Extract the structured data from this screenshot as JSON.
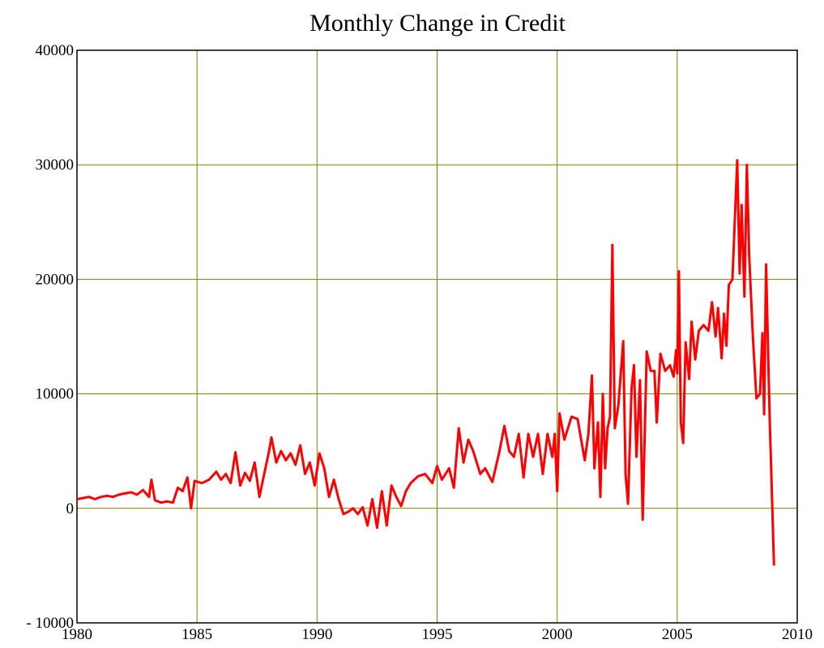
{
  "chart_data": {
    "type": "line",
    "title": "Monthly Change in Credit",
    "x": [
      1980.0,
      1980.25,
      1980.5,
      1980.75,
      1981.0,
      1981.25,
      1981.5,
      1981.75,
      1982.0,
      1982.25,
      1982.5,
      1982.75,
      1983.0,
      1983.1,
      1983.25,
      1983.5,
      1983.75,
      1984.0,
      1984.2,
      1984.4,
      1984.6,
      1984.75,
      1984.9,
      1985.2,
      1985.5,
      1985.8,
      1986.0,
      1986.2,
      1986.4,
      1986.6,
      1986.8,
      1987.0,
      1987.2,
      1987.4,
      1987.6,
      1987.8,
      1988.0,
      1988.1,
      1988.3,
      1988.5,
      1988.7,
      1988.9,
      1989.1,
      1989.3,
      1989.5,
      1989.7,
      1989.9,
      1990.1,
      1990.3,
      1990.5,
      1990.7,
      1990.9,
      1991.1,
      1991.3,
      1991.5,
      1991.7,
      1991.9,
      1992.1,
      1992.3,
      1992.5,
      1992.7,
      1992.9,
      1993.1,
      1993.3,
      1993.5,
      1993.7,
      1993.9,
      1994.2,
      1994.5,
      1994.8,
      1995.0,
      1995.2,
      1995.5,
      1995.7,
      1995.9,
      1996.1,
      1996.3,
      1996.5,
      1996.8,
      1997.0,
      1997.3,
      1997.6,
      1997.8,
      1998.0,
      1998.2,
      1998.4,
      1998.6,
      1998.8,
      1999.0,
      1999.2,
      1999.4,
      1999.6,
      1999.8,
      1999.9,
      2000.0,
      2000.1,
      2000.3,
      2000.6,
      2000.85,
      2001.15,
      2001.3,
      2001.45,
      2001.55,
      2001.7,
      2001.8,
      2001.9,
      2002.0,
      2002.1,
      2002.2,
      2002.3,
      2002.4,
      2002.55,
      2002.75,
      2002.85,
      2002.95,
      2003.1,
      2003.2,
      2003.3,
      2003.45,
      2003.56,
      2003.73,
      2003.9,
      2004.05,
      2004.15,
      2004.3,
      2004.5,
      2004.7,
      2004.85,
      2004.95,
      2005.0,
      2005.07,
      2005.15,
      2005.25,
      2005.35,
      2005.5,
      2005.6,
      2005.75,
      2005.9,
      2006.1,
      2006.3,
      2006.45,
      2006.6,
      2006.7,
      2006.85,
      2006.95,
      2007.05,
      2007.15,
      2007.3,
      2007.5,
      2007.6,
      2007.68,
      2007.8,
      2007.9,
      2008.0,
      2008.15,
      2008.3,
      2008.45,
      2008.55,
      2008.62,
      2008.7,
      2008.85,
      2009.03
    ],
    "series": [
      {
        "color": "#ff0000",
        "values": [
          800,
          900,
          1000,
          800,
          1000,
          1100,
          1000,
          1200,
          1300,
          1400,
          1200,
          1600,
          1000,
          2500,
          700,
          500,
          600,
          500,
          1800,
          1500,
          2700,
          0,
          2400,
          2200,
          2500,
          3200,
          2500,
          3000,
          2200,
          4900,
          2000,
          3100,
          2400,
          4000,
          1000,
          3000,
          5000,
          6200,
          4000,
          5000,
          4200,
          4800,
          3800,
          5500,
          3000,
          4000,
          2000,
          4800,
          3500,
          1000,
          2500,
          800,
          -500,
          -300,
          0,
          -500,
          100,
          -1500,
          800,
          -1700,
          1500,
          -1500,
          2000,
          1000,
          200,
          1500,
          2200,
          2800,
          3000,
          2200,
          3700,
          2500,
          3500,
          1800,
          7000,
          4000,
          6000,
          5000,
          3000,
          3500,
          2300,
          5000,
          7200,
          5000,
          4500,
          6500,
          2700,
          6500,
          4500,
          6500,
          3000,
          6500,
          4500,
          6500,
          1500,
          8300,
          6000,
          8000,
          7800,
          4200,
          6500,
          11600,
          3500,
          7500,
          1000,
          10000,
          3500,
          7000,
          8000,
          23000,
          7000,
          9000,
          14600,
          3000,
          400,
          10500,
          12500,
          4500,
          11200,
          -1000,
          13700,
          12000,
          12000,
          7500,
          13500,
          12000,
          12500,
          11500,
          13800,
          11800,
          20700,
          7500,
          5700,
          14500,
          11300,
          16300,
          13000,
          15500,
          16000,
          15500,
          18000,
          15000,
          17500,
          13100,
          17000,
          14200,
          19500,
          20000,
          30400,
          20500,
          26500,
          18500,
          30000,
          22000,
          15000,
          9600,
          10000,
          15300,
          8200,
          21300,
          8000,
          -5000
        ]
      }
    ],
    "xlim": [
      1980,
      2010
    ],
    "xticks": [
      1980,
      1985,
      1990,
      1995,
      2000,
      2005,
      2010
    ],
    "ylim": [
      -10000,
      40000
    ],
    "yticks": [
      {
        "value": -10000,
        "label": "- 10000"
      },
      0,
      10000,
      20000,
      30000,
      40000
    ],
    "grid": true,
    "grid_color": "#808000"
  }
}
